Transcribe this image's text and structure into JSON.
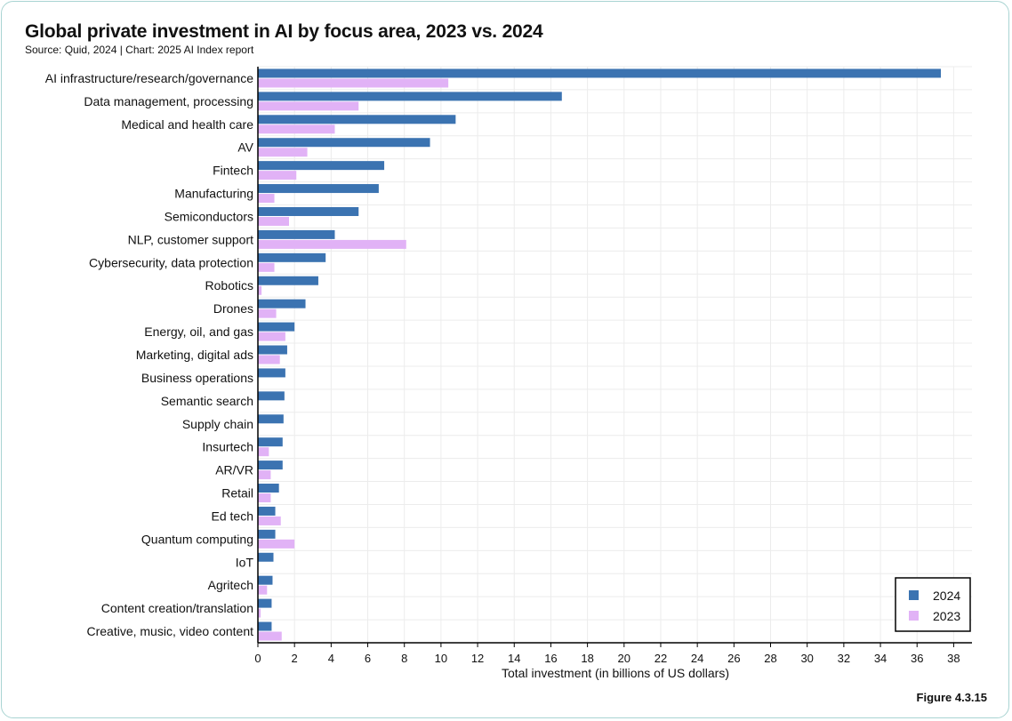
{
  "header": {
    "title": "Global private investment in AI by focus area, 2023 vs. 2024",
    "subtitle": "Source: Quid, 2024 | Chart: 2025 AI Index report"
  },
  "footer": {
    "figure_label": "Figure 4.3.15"
  },
  "colors": {
    "series_2024": "#3b73b1",
    "series_2023": "#e1b2f6",
    "grid": "#ececec",
    "axis": "#000000"
  },
  "chart_data": {
    "type": "bar",
    "orientation": "horizontal",
    "title": "Global private investment in AI by focus area, 2023 vs. 2024",
    "xlabel": "Total investment (in billions of US dollars)",
    "ylabel": "",
    "xlim": [
      0,
      39
    ],
    "xticks": [
      0,
      2,
      4,
      6,
      8,
      10,
      12,
      14,
      16,
      18,
      20,
      22,
      24,
      26,
      28,
      30,
      32,
      34,
      36,
      38
    ],
    "grid": true,
    "legend_position": "bottom-right",
    "categories": [
      "AI infrastructure/research/governance",
      "Data management, processing",
      "Medical and health care",
      "AV",
      "Fintech",
      "Manufacturing",
      "Semiconductors",
      "NLP, customer support",
      "Cybersecurity, data protection",
      "Robotics",
      "Drones",
      "Energy, oil, and gas",
      "Marketing, digital ads",
      "Business operations",
      "Semantic search",
      "Supply chain",
      "Insurtech",
      "AR/VR",
      "Retail",
      "Ed tech",
      "Quantum computing",
      "IoT",
      "Agritech",
      "Content creation/translation",
      "Creative, music, video content"
    ],
    "series": [
      {
        "name": "2024",
        "values": [
          37.3,
          16.6,
          10.8,
          9.4,
          6.9,
          6.6,
          5.5,
          4.2,
          3.7,
          3.3,
          2.6,
          2.0,
          1.6,
          1.5,
          1.45,
          1.4,
          1.35,
          1.35,
          1.15,
          0.95,
          0.95,
          0.85,
          0.8,
          0.75,
          0.75
        ]
      },
      {
        "name": "2023",
        "values": [
          10.4,
          5.5,
          4.2,
          2.7,
          2.1,
          0.9,
          1.7,
          8.1,
          0.9,
          0.2,
          1.0,
          1.5,
          1.2,
          0.0,
          0.0,
          0.0,
          0.6,
          0.7,
          0.7,
          1.25,
          2.0,
          0.0,
          0.5,
          0.15,
          1.3
        ]
      }
    ]
  }
}
